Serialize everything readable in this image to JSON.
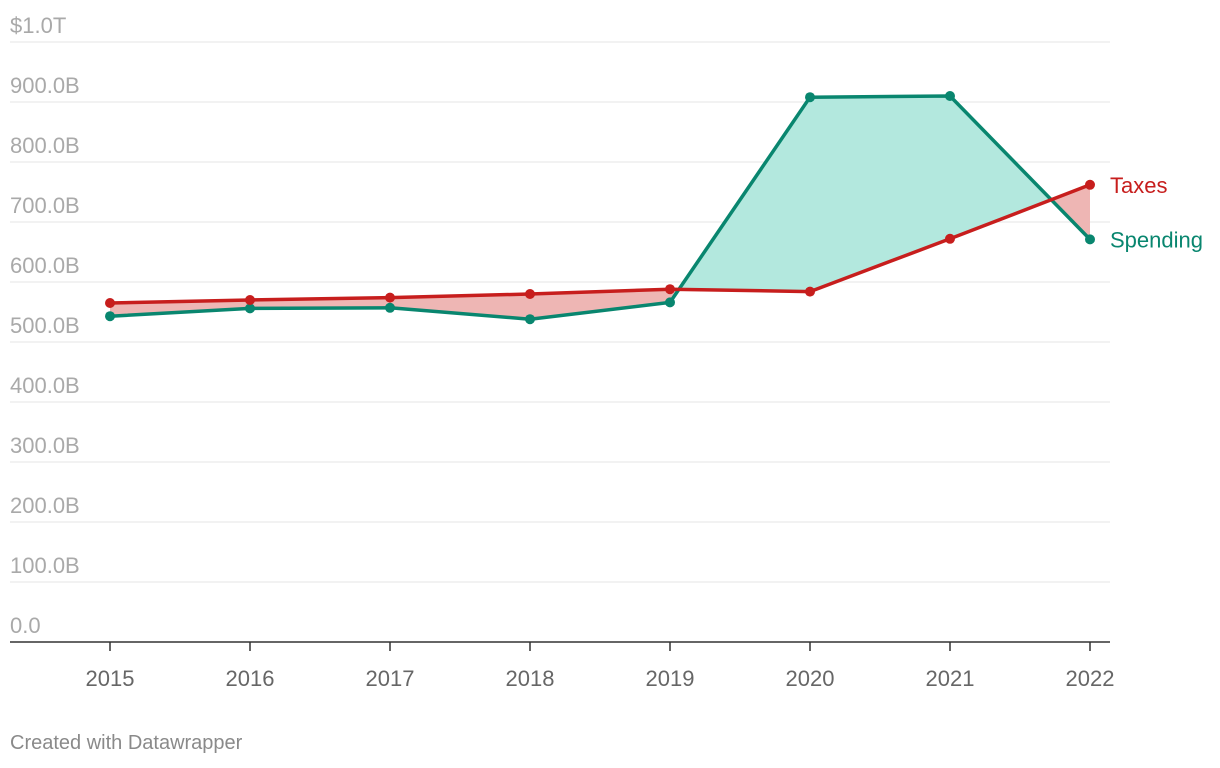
{
  "credit": "Created with Datawrapper",
  "colors": {
    "taxes": "#c71e1d",
    "spending": "#09866f",
    "taxes_surplus_fill": "#eeb6b4",
    "spending_surplus_fill": "#b3e8de"
  },
  "chart_data": {
    "type": "line",
    "x": [
      "2015",
      "2016",
      "2017",
      "2018",
      "2019",
      "2020",
      "2021",
      "2022"
    ],
    "series": [
      {
        "name": "Taxes",
        "values": [
          565,
          570,
          574,
          580,
          588,
          584,
          672,
          762
        ]
      },
      {
        "name": "Spending",
        "values": [
          543,
          556,
          557,
          538,
          566,
          908,
          910,
          671
        ]
      }
    ],
    "area_between_series": true,
    "ylim": [
      0,
      1000
    ],
    "yticks": [
      0,
      100,
      200,
      300,
      400,
      500,
      600,
      700,
      800,
      900,
      1000
    ],
    "ytick_labels": [
      "0.0",
      "100.0B",
      "200.0B",
      "300.0B",
      "400.0B",
      "500.0B",
      "600.0B",
      "700.0B",
      "800.0B",
      "900.0B",
      "$1.0T"
    ],
    "unit": "B",
    "grid": true,
    "legend": "direct labels at right end",
    "title": "",
    "xlabel": "",
    "ylabel": ""
  }
}
